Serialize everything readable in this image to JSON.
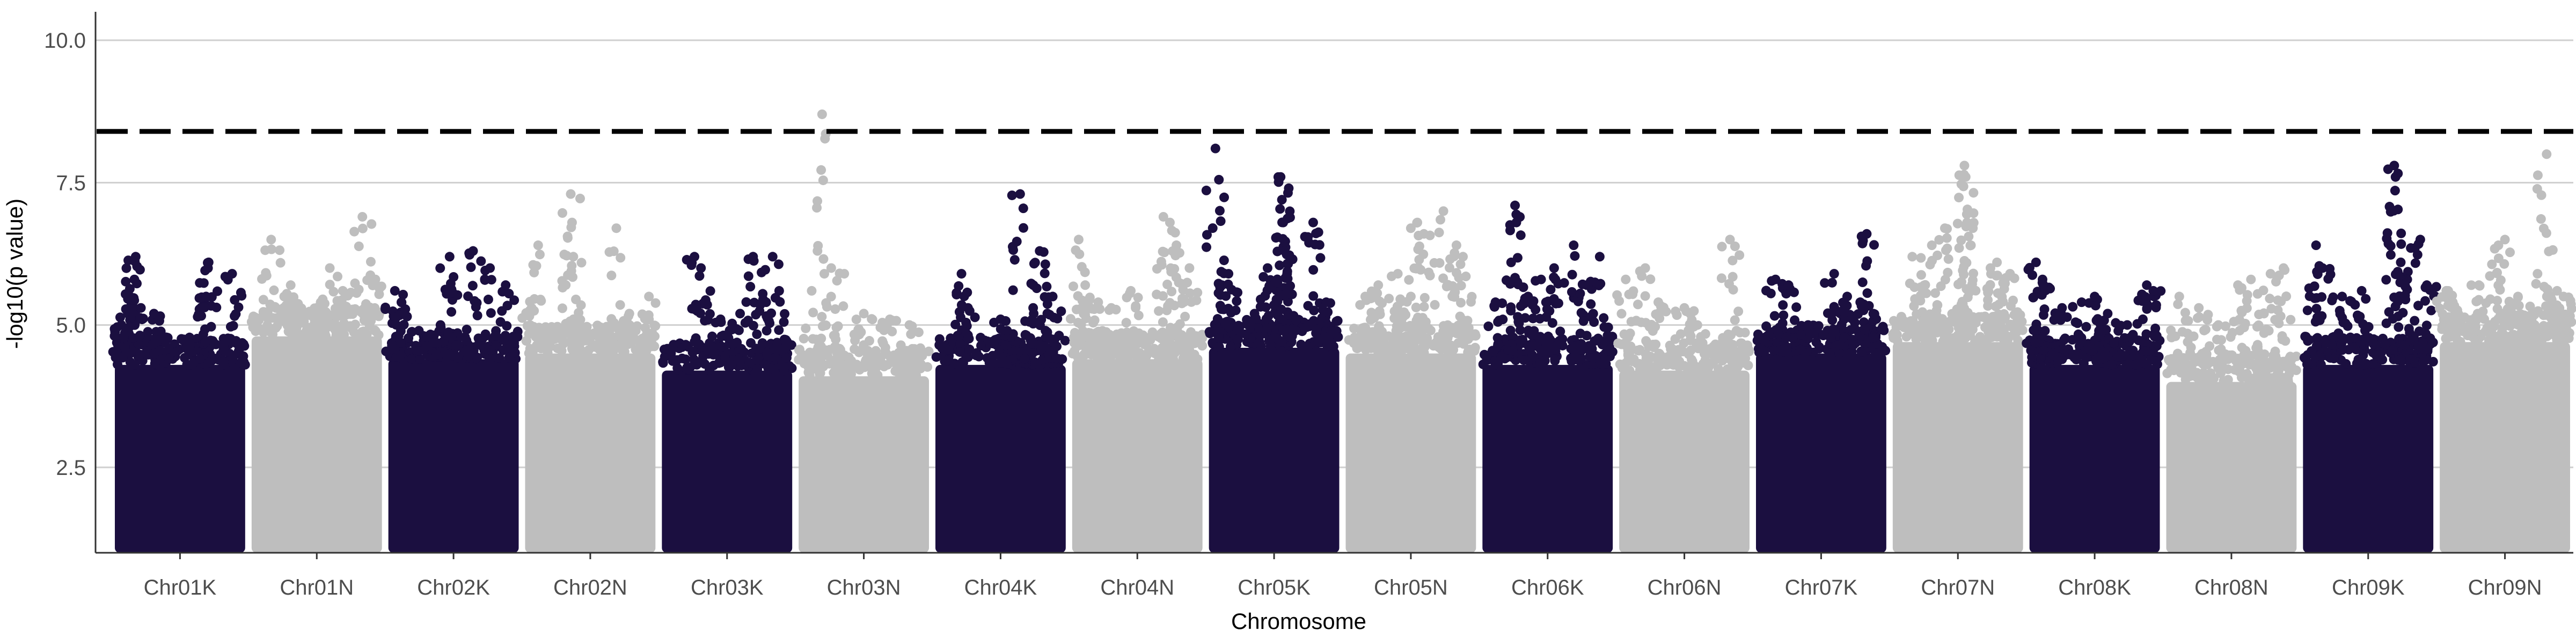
{
  "chart_data": {
    "type": "scatter",
    "xlabel": "Chromosome",
    "ylabel": "-log10(p value)",
    "ylim": [
      1,
      10.5
    ],
    "yticks": [
      2.5,
      5.0,
      7.5,
      10.0
    ],
    "ytick_labels": [
      "2.5",
      "5.0",
      "7.5",
      "10.0"
    ],
    "grid": "horizontal",
    "threshold": 8.4,
    "colors": {
      "odd": "#1b0f40",
      "even": "#bebebe",
      "threshold": "#000000"
    },
    "chromosomes": [
      {
        "name": "Chr01K",
        "band_top": 4.3,
        "peaks": [
          [
            0.05,
            5.0
          ],
          [
            0.1,
            5.2
          ],
          [
            0.2,
            5.3
          ],
          [
            0.3,
            5.2
          ],
          [
            0.15,
            5.8
          ],
          [
            0.16,
            6.2
          ],
          [
            0.72,
            6.1
          ],
          [
            0.9,
            5.9
          ],
          [
            0.7,
            5.5
          ]
        ]
      },
      {
        "name": "Chr01N",
        "band_top": 4.8,
        "peaks": [
          [
            0.15,
            6.5
          ],
          [
            0.3,
            5.7
          ],
          [
            0.25,
            5.5
          ],
          [
            0.6,
            6.0
          ],
          [
            0.7,
            5.6
          ],
          [
            0.85,
            6.9
          ],
          [
            0.95,
            5.8
          ],
          [
            0.5,
            5.3
          ]
        ]
      },
      {
        "name": "Chr02K",
        "band_top": 4.4,
        "peaks": [
          [
            0.05,
            5.6
          ],
          [
            0.1,
            5.4
          ],
          [
            0.47,
            6.2
          ],
          [
            0.65,
            6.3
          ],
          [
            0.78,
            6.0
          ],
          [
            0.9,
            5.7
          ],
          [
            0.4,
            5.0
          ],
          [
            0.3,
            4.8
          ]
        ]
      },
      {
        "name": "Chr02N",
        "band_top": 4.5,
        "peaks": [
          [
            0.05,
            5.3
          ],
          [
            0.1,
            6.4
          ],
          [
            0.35,
            7.3
          ],
          [
            0.36,
            6.8
          ],
          [
            0.37,
            6.2
          ],
          [
            0.7,
            6.7
          ],
          [
            0.8,
            5.2
          ],
          [
            0.95,
            5.5
          ]
        ]
      },
      {
        "name": "Chr03K",
        "band_top": 4.2,
        "peaks": [
          [
            0.25,
            6.2
          ],
          [
            0.3,
            6.0
          ],
          [
            0.45,
            5.1
          ],
          [
            0.6,
            5.2
          ],
          [
            0.7,
            6.2
          ],
          [
            0.85,
            6.2
          ],
          [
            0.9,
            5.6
          ],
          [
            0.8,
            5.4
          ]
        ]
      },
      {
        "name": "Chr03N",
        "band_top": 4.1,
        "peaks": [
          [
            0.1,
            5.6
          ],
          [
            0.18,
            8.7
          ],
          [
            0.25,
            6.0
          ],
          [
            0.35,
            5.9
          ],
          [
            0.5,
            5.2
          ],
          [
            0.7,
            5.1
          ],
          [
            0.85,
            5.0
          ]
        ]
      },
      {
        "name": "Chr04K",
        "band_top": 4.3,
        "peaks": [
          [
            0.2,
            5.9
          ],
          [
            0.25,
            5.3
          ],
          [
            0.5,
            5.1
          ],
          [
            0.65,
            7.3
          ],
          [
            0.75,
            5.3
          ],
          [
            0.8,
            6.3
          ],
          [
            0.9,
            5.5
          ],
          [
            0.55,
            4.9
          ]
        ]
      },
      {
        "name": "Chr04N",
        "band_top": 4.4,
        "peaks": [
          [
            0.05,
            6.5
          ],
          [
            0.1,
            5.7
          ],
          [
            0.2,
            5.4
          ],
          [
            0.3,
            5.3
          ],
          [
            0.45,
            5.6
          ],
          [
            0.7,
            6.9
          ],
          [
            0.75,
            6.8
          ],
          [
            0.8,
            6.4
          ],
          [
            0.9,
            6.0
          ]
        ]
      },
      {
        "name": "Chr05K",
        "band_top": 4.6,
        "peaks": [
          [
            0.05,
            8.1
          ],
          [
            0.1,
            5.7
          ],
          [
            0.15,
            5.9
          ],
          [
            0.35,
            5.2
          ],
          [
            0.55,
            7.6
          ],
          [
            0.56,
            7.2
          ],
          [
            0.57,
            6.8
          ],
          [
            0.58,
            6.3
          ],
          [
            0.45,
            6.0
          ],
          [
            0.6,
            5.9
          ],
          [
            0.8,
            6.8
          ],
          [
            0.9,
            5.4
          ]
        ]
      },
      {
        "name": "Chr05N",
        "band_top": 4.5,
        "peaks": [
          [
            0.15,
            5.5
          ],
          [
            0.25,
            5.7
          ],
          [
            0.4,
            5.9
          ],
          [
            0.55,
            6.8
          ],
          [
            0.6,
            6.6
          ],
          [
            0.75,
            7.0
          ],
          [
            0.85,
            6.4
          ],
          [
            0.9,
            6.2
          ],
          [
            0.5,
            5.5
          ]
        ]
      },
      {
        "name": "Chr06K",
        "band_top": 4.3,
        "peaks": [
          [
            0.1,
            5.4
          ],
          [
            0.25,
            7.1
          ],
          [
            0.26,
            6.8
          ],
          [
            0.35,
            5.5
          ],
          [
            0.45,
            5.8
          ],
          [
            0.55,
            6.0
          ],
          [
            0.7,
            6.4
          ],
          [
            0.8,
            5.7
          ],
          [
            0.9,
            6.2
          ]
        ]
      },
      {
        "name": "Chr06N",
        "band_top": 4.2,
        "peaks": [
          [
            0.05,
            5.8
          ],
          [
            0.2,
            6.0
          ],
          [
            0.3,
            5.4
          ],
          [
            0.5,
            5.3
          ],
          [
            0.6,
            5.0
          ],
          [
            0.85,
            6.5
          ],
          [
            0.9,
            4.9
          ]
        ]
      },
      {
        "name": "Chr07K",
        "band_top": 4.5,
        "peaks": [
          [
            0.15,
            5.8
          ],
          [
            0.25,
            5.7
          ],
          [
            0.4,
            5.0
          ],
          [
            0.6,
            5.9
          ],
          [
            0.85,
            6.6
          ],
          [
            0.7,
            5.5
          ],
          [
            0.8,
            5.4
          ],
          [
            0.9,
            5.2
          ]
        ]
      },
      {
        "name": "Chr07N",
        "band_top": 4.7,
        "peaks": [
          [
            0.15,
            6.2
          ],
          [
            0.3,
            6.4
          ],
          [
            0.4,
            6.7
          ],
          [
            0.55,
            7.8
          ],
          [
            0.56,
            7.6
          ],
          [
            0.57,
            6.8
          ],
          [
            0.6,
            6.4
          ],
          [
            0.75,
            6.0
          ],
          [
            0.8,
            6.1
          ],
          [
            0.9,
            5.9
          ]
        ]
      },
      {
        "name": "Chr08K",
        "band_top": 4.3,
        "peaks": [
          [
            0.05,
            6.1
          ],
          [
            0.1,
            5.8
          ],
          [
            0.25,
            5.3
          ],
          [
            0.4,
            5.4
          ],
          [
            0.5,
            5.5
          ],
          [
            0.6,
            5.2
          ],
          [
            0.75,
            5.0
          ],
          [
            0.9,
            5.7
          ],
          [
            0.95,
            5.6
          ]
        ]
      },
      {
        "name": "Chr08N",
        "band_top": 4.0,
        "peaks": [
          [
            0.1,
            5.5
          ],
          [
            0.25,
            5.3
          ],
          [
            0.4,
            5.0
          ],
          [
            0.55,
            5.7
          ],
          [
            0.65,
            5.8
          ],
          [
            0.8,
            5.9
          ],
          [
            0.9,
            6.0
          ],
          [
            0.75,
            5.2
          ]
        ]
      },
      {
        "name": "Chr09K",
        "band_top": 4.3,
        "peaks": [
          [
            0.1,
            6.4
          ],
          [
            0.15,
            6.0
          ],
          [
            0.3,
            5.5
          ],
          [
            0.45,
            5.6
          ],
          [
            0.7,
            7.8
          ],
          [
            0.71,
            7.6
          ],
          [
            0.75,
            6.1
          ],
          [
            0.8,
            5.8
          ],
          [
            0.9,
            6.5
          ],
          [
            0.95,
            5.7
          ]
        ]
      },
      {
        "name": "Chr09N",
        "band_top": 4.7,
        "peaks": [
          [
            0.05,
            5.6
          ],
          [
            0.1,
            5.4
          ],
          [
            0.3,
            5.7
          ],
          [
            0.45,
            6.4
          ],
          [
            0.5,
            6.5
          ],
          [
            0.6,
            5.5
          ],
          [
            0.75,
            5.9
          ],
          [
            0.82,
            8.0
          ],
          [
            0.9,
            5.6
          ],
          [
            0.95,
            5.5
          ]
        ]
      }
    ]
  }
}
